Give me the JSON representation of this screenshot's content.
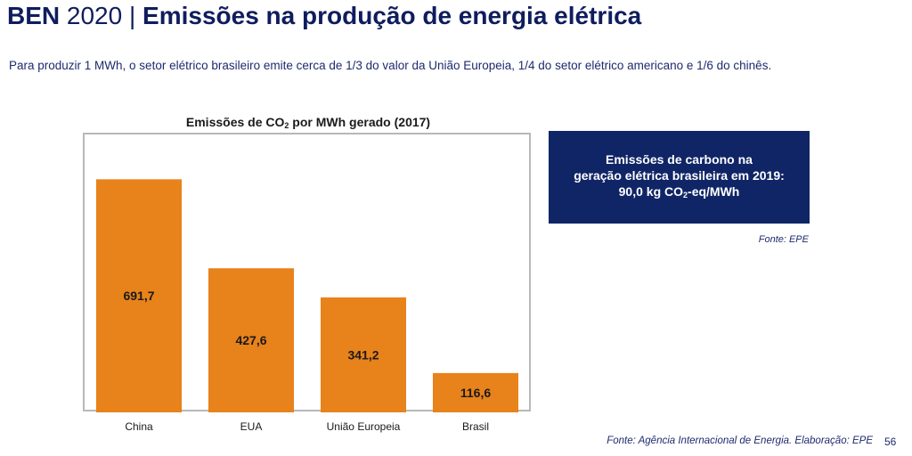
{
  "header": {
    "title_bold": "BEN",
    "title_year": " 2020 | ",
    "title_rest": "Emissões na produção de energia elétrica"
  },
  "subtitle": "Para produzir 1 MWh, o setor elétrico brasileiro emite cerca de 1/3 do valor da União Europeia, 1/4 do setor elétrico americano e 1/6 do chinês.",
  "chart_title": {
    "before": "Emissões de CO",
    "sub": "2",
    "after": " por MWh gerado (2017)"
  },
  "info_box": {
    "line1": "Emissões de carbono na",
    "line2": "geração elétrica brasileira em 2019:",
    "line3_before": "90,0 kg CO",
    "line3_sub": "2",
    "line3_after": "-eq/MWh"
  },
  "source_epe": "Fonte: EPE",
  "source_bottom": "Fonte: Agência Internacional de Energia. Elaboração: EPE",
  "page_number": "56",
  "colors": {
    "bar": "#e8821a",
    "title": "#0f1d5e",
    "info_box_bg": "#102566"
  },
  "chart_data": {
    "type": "bar",
    "title": "Emissões de CO2 por MWh gerado (2017)",
    "categories": [
      "China",
      "EUA",
      "União Europeia",
      "Brasil"
    ],
    "values": [
      691.7,
      427.6,
      341.2,
      116.6
    ],
    "value_labels": [
      "691,7",
      "427,6",
      "341,2",
      "116,6"
    ],
    "ylim": [
      0,
      830
    ],
    "grid": false,
    "legend": "none"
  }
}
